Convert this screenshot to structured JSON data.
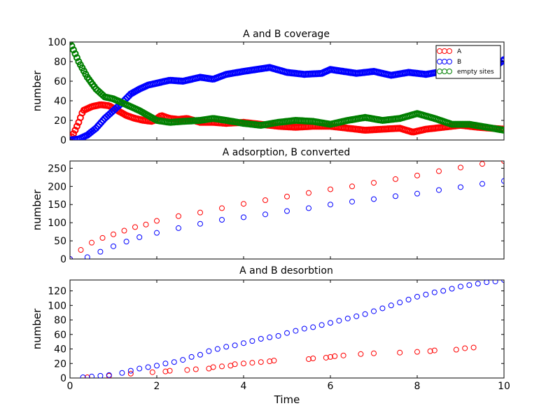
{
  "figure": {
    "xlabel": "Time"
  },
  "colors": {
    "A": "#ff0000",
    "B": "#0000ff",
    "empty": "#007f00"
  },
  "chart_data": [
    {
      "type": "scatter",
      "title": "A and B coverage",
      "xlabel": "",
      "ylabel": "number",
      "xlim": [
        0,
        10
      ],
      "ylim": [
        0,
        100
      ],
      "xticks": [
        0,
        2,
        4,
        6,
        8,
        10
      ],
      "xtick_labels": [
        "",
        "",
        "",
        "",
        "",
        ""
      ],
      "yticks": [
        0,
        20,
        40,
        60,
        80,
        100
      ],
      "ytick_labels": [
        "0",
        "20",
        "40",
        "60",
        "80",
        "100"
      ],
      "legend": {
        "placement": "top-right",
        "entries": [
          "A",
          "B",
          "empty sites"
        ]
      },
      "marker_density": "dense",
      "series": [
        {
          "name": "A",
          "color": "#ff0000",
          "x": [
            0,
            0.1,
            0.2,
            0.3,
            0.5,
            0.7,
            0.9,
            1.1,
            1.3,
            1.5,
            1.7,
            1.9,
            2.1,
            2.3,
            2.5,
            2.7,
            3.0,
            3.3,
            3.6,
            4.0,
            4.4,
            4.8,
            5.2,
            5.6,
            6.0,
            6.4,
            6.8,
            7.2,
            7.6,
            7.9,
            8.2,
            8.6,
            9.0,
            9.4,
            9.7,
            10
          ],
          "y": [
            0,
            8,
            18,
            30,
            34,
            36,
            35,
            30,
            25,
            22,
            20,
            19,
            25,
            22,
            21,
            22,
            18,
            18,
            17,
            18,
            16,
            14,
            13,
            14,
            14,
            12,
            10,
            11,
            12,
            8,
            11,
            13,
            15,
            13,
            12,
            11
          ]
        },
        {
          "name": "B",
          "color": "#0000ff",
          "x": [
            0,
            0.2,
            0.4,
            0.6,
            0.8,
            1.0,
            1.2,
            1.4,
            1.6,
            1.8,
            2.0,
            2.3,
            2.6,
            2.8,
            3.0,
            3.3,
            3.6,
            4.0,
            4.3,
            4.6,
            5.0,
            5.4,
            5.8,
            6.0,
            6.3,
            6.6,
            7.0,
            7.4,
            7.8,
            8.2,
            8.6,
            9.0,
            9.4,
            9.8,
            10
          ],
          "y": [
            0,
            1,
            5,
            12,
            22,
            30,
            38,
            47,
            52,
            56,
            58,
            61,
            60,
            62,
            64,
            62,
            67,
            70,
            72,
            74,
            69,
            67,
            68,
            72,
            70,
            68,
            70,
            66,
            69,
            67,
            70,
            68,
            72,
            75,
            82
          ]
        },
        {
          "name": "empty sites",
          "color": "#007f00",
          "x": [
            0,
            0.1,
            0.2,
            0.3,
            0.4,
            0.5,
            0.6,
            0.7,
            0.8,
            1.0,
            1.2,
            1.4,
            1.6,
            1.8,
            2.0,
            2.3,
            2.6,
            3.0,
            3.3,
            3.6,
            4.0,
            4.4,
            4.8,
            5.2,
            5.6,
            6.0,
            6.4,
            6.8,
            7.2,
            7.6,
            8.0,
            8.4,
            8.8,
            9.2,
            9.6,
            10
          ],
          "y": [
            100,
            90,
            80,
            72,
            64,
            58,
            52,
            48,
            44,
            42,
            38,
            34,
            30,
            25,
            20,
            18,
            19,
            20,
            22,
            20,
            17,
            15,
            18,
            20,
            19,
            16,
            20,
            23,
            20,
            22,
            27,
            22,
            16,
            16,
            13,
            10
          ]
        }
      ]
    },
    {
      "type": "scatter",
      "title": "A adsorption, B converted",
      "xlabel": "",
      "ylabel": "number",
      "xlim": [
        0,
        10
      ],
      "ylim": [
        0,
        270
      ],
      "xticks": [
        0,
        2,
        4,
        6,
        8,
        10
      ],
      "xtick_labels": [
        "",
        "",
        "",
        "",
        "",
        ""
      ],
      "yticks": [
        0,
        50,
        100,
        150,
        200,
        250
      ],
      "ytick_labels": [
        "0",
        "50",
        "100",
        "150",
        "200",
        "250"
      ],
      "marker_density": "sparse",
      "series": [
        {
          "name": "A",
          "color": "#ff0000",
          "x": [
            0,
            0.25,
            0.5,
            0.75,
            1.0,
            1.25,
            1.5,
            1.75,
            2.0,
            2.5,
            3.0,
            3.5,
            4.0,
            4.5,
            5.0,
            5.5,
            6.0,
            6.5,
            7.0,
            7.5,
            8.0,
            8.5,
            9.0,
            9.5,
            10
          ],
          "y": [
            0,
            25,
            45,
            58,
            68,
            78,
            88,
            95,
            105,
            118,
            128,
            140,
            152,
            162,
            172,
            182,
            192,
            200,
            210,
            220,
            230,
            242,
            252,
            262,
            270
          ]
        },
        {
          "name": "B",
          "color": "#0000ff",
          "x": [
            0,
            0.4,
            0.7,
            1.0,
            1.3,
            1.6,
            2.0,
            2.5,
            3.0,
            3.5,
            4.0,
            4.5,
            5.0,
            5.5,
            6.0,
            6.5,
            7.0,
            7.5,
            8.0,
            8.5,
            9.0,
            9.5,
            10
          ],
          "y": [
            0,
            5,
            20,
            35,
            48,
            60,
            72,
            85,
            97,
            108,
            115,
            123,
            132,
            140,
            150,
            158,
            165,
            173,
            180,
            190,
            198,
            207,
            215
          ]
        }
      ]
    },
    {
      "type": "scatter",
      "title": "A and B desorbtion",
      "xlabel": "Time",
      "ylabel": "number",
      "xlim": [
        0,
        10
      ],
      "ylim": [
        0,
        135
      ],
      "xticks": [
        0,
        2,
        4,
        6,
        8,
        10
      ],
      "xtick_labels": [
        "0",
        "2",
        "4",
        "6",
        "8",
        "10"
      ],
      "yticks": [
        0,
        20,
        40,
        60,
        80,
        100,
        120
      ],
      "ytick_labels": [
        "0",
        "20",
        "40",
        "60",
        "80",
        "100",
        "120"
      ],
      "marker_density": "sparse",
      "series": [
        {
          "name": "A",
          "color": "#ff0000",
          "x": [
            0.4,
            0.9,
            1.4,
            1.9,
            2.2,
            2.3,
            2.7,
            2.9,
            3.2,
            3.3,
            3.5,
            3.7,
            3.8,
            4.0,
            4.2,
            4.4,
            4.6,
            4.7,
            5.5,
            5.6,
            5.9,
            6.0,
            6.1,
            6.3,
            6.7,
            7.0,
            7.6,
            8.0,
            8.3,
            8.4,
            8.9,
            9.1,
            9.3
          ],
          "y": [
            1,
            3,
            6,
            8,
            9,
            10,
            11,
            12,
            13,
            15,
            16,
            17,
            19,
            20,
            21,
            22,
            23,
            24,
            26,
            27,
            28,
            29,
            30,
            31,
            33,
            34,
            35,
            36,
            37,
            38,
            39,
            41,
            42
          ]
        },
        {
          "name": "B",
          "color": "#0000ff",
          "x": [
            0.3,
            0.5,
            0.7,
            0.9,
            1.2,
            1.4,
            1.6,
            1.8,
            2.0,
            2.2,
            2.4,
            2.6,
            2.8,
            3.0,
            3.2,
            3.4,
            3.6,
            3.8,
            4.0,
            4.2,
            4.4,
            4.6,
            4.8,
            5.0,
            5.2,
            5.4,
            5.6,
            5.8,
            6.0,
            6.2,
            6.4,
            6.6,
            6.8,
            7.0,
            7.2,
            7.4,
            7.6,
            7.8,
            8.0,
            8.2,
            8.4,
            8.6,
            8.8,
            9.0,
            9.2,
            9.4,
            9.6,
            9.8,
            10
          ],
          "y": [
            1,
            2,
            3,
            4,
            7,
            10,
            13,
            15,
            17,
            20,
            22,
            25,
            29,
            32,
            37,
            40,
            43,
            45,
            48,
            51,
            54,
            56,
            58,
            62,
            65,
            68,
            70,
            73,
            76,
            79,
            82,
            85,
            88,
            92,
            96,
            100,
            104,
            108,
            112,
            115,
            118,
            120,
            123,
            126,
            128,
            130,
            132,
            133,
            135
          ]
        }
      ]
    }
  ]
}
